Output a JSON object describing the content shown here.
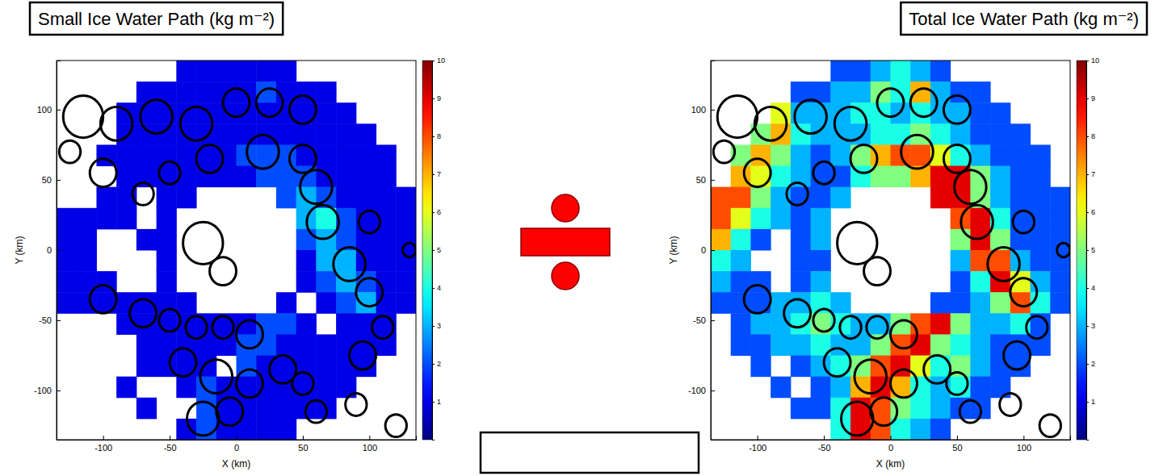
{
  "chart_data": [
    {
      "type": "heatmap",
      "title": "Small Ice Water Path (kg m⁻²)",
      "x_label": "X (km)",
      "y_label": "Y (km)",
      "xlim": [
        -135,
        135
      ],
      "ylim": [
        -135,
        135
      ],
      "xticks": [
        -100,
        -50,
        0,
        50,
        100
      ],
      "yticks": [
        -100,
        -50,
        0,
        50,
        100
      ],
      "x": [
        -127.5,
        -112.5,
        -97.5,
        -82.5,
        -67.5,
        -52.5,
        -37.5,
        -22.5,
        -7.5,
        7.5,
        22.5,
        37.5,
        52.5,
        67.5,
        82.5,
        97.5,
        112.5,
        127.5
      ],
      "y": [
        127.5,
        112.5,
        97.5,
        82.5,
        67.5,
        52.5,
        37.5,
        22.5,
        7.5,
        -7.5,
        -22.5,
        -37.5,
        -52.5,
        -67.5,
        -82.5,
        -97.5,
        -112.5,
        -127.5
      ],
      "values": [
        [
          null,
          null,
          null,
          null,
          null,
          null,
          1,
          1,
          1,
          1,
          1,
          1,
          null,
          null,
          null,
          null,
          null,
          null
        ],
        [
          null,
          null,
          null,
          null,
          1,
          1,
          1,
          1,
          1,
          1,
          2,
          1,
          1,
          1,
          null,
          null,
          null,
          null
        ],
        [
          null,
          null,
          null,
          1,
          1,
          1,
          1,
          1,
          1,
          1,
          1,
          1,
          1,
          1,
          1,
          null,
          null,
          null
        ],
        [
          null,
          null,
          null,
          1,
          1,
          1,
          1,
          1,
          1,
          1,
          1,
          1,
          1,
          1,
          1,
          1,
          null,
          null
        ],
        [
          null,
          null,
          1,
          1,
          1,
          1,
          1,
          1,
          1,
          2,
          2,
          2,
          1,
          1,
          1,
          1,
          1,
          null
        ],
        [
          null,
          null,
          null,
          1,
          1,
          1,
          1,
          1,
          1,
          1,
          2,
          2,
          2,
          1,
          1,
          1,
          1,
          null
        ],
        [
          null,
          null,
          1,
          1,
          null,
          1,
          1,
          null,
          null,
          null,
          null,
          2,
          3,
          2,
          1,
          1,
          1,
          1
        ],
        [
          1,
          1,
          1,
          1,
          null,
          1,
          null,
          null,
          null,
          null,
          null,
          null,
          3,
          4,
          2,
          1,
          1,
          1
        ],
        [
          1,
          1,
          null,
          null,
          1,
          1,
          null,
          null,
          null,
          null,
          null,
          null,
          2,
          3,
          2,
          1,
          1,
          1
        ],
        [
          1,
          1,
          null,
          null,
          null,
          1,
          null,
          null,
          null,
          null,
          null,
          null,
          1,
          3,
          3,
          1,
          1,
          1
        ],
        [
          1,
          1,
          1,
          null,
          null,
          1,
          null,
          null,
          null,
          null,
          null,
          null,
          1,
          2,
          3,
          2,
          1,
          1
        ],
        [
          1,
          1,
          1,
          1,
          1,
          1,
          1,
          null,
          null,
          null,
          null,
          1,
          null,
          1,
          2,
          3,
          1,
          1
        ],
        [
          null,
          null,
          null,
          1,
          1,
          1,
          1,
          1,
          1,
          1,
          2,
          2,
          1,
          null,
          1,
          1,
          1,
          null
        ],
        [
          null,
          null,
          null,
          null,
          1,
          1,
          1,
          1,
          1,
          2,
          2,
          1,
          1,
          1,
          1,
          1,
          1,
          null
        ],
        [
          null,
          null,
          null,
          null,
          1,
          1,
          1,
          1,
          null,
          2,
          1,
          1,
          1,
          1,
          1,
          1,
          null,
          null
        ],
        [
          null,
          null,
          null,
          1,
          null,
          null,
          1,
          2,
          1,
          1,
          1,
          1,
          1,
          1,
          1,
          null,
          null,
          null
        ],
        [
          null,
          null,
          null,
          null,
          1,
          null,
          null,
          2,
          1,
          1,
          1,
          1,
          1,
          1,
          null,
          null,
          null,
          null
        ],
        [
          null,
          null,
          null,
          null,
          null,
          null,
          1,
          2,
          1,
          1,
          1,
          1,
          null,
          null,
          null,
          null,
          null,
          null
        ]
      ],
      "color_range": [
        0,
        10
      ],
      "color_ticks": [
        1,
        2,
        3,
        4,
        5,
        6,
        7,
        8,
        9,
        10
      ],
      "contours": [
        [
          -115,
          95,
          15
        ],
        [
          -90,
          90,
          12
        ],
        [
          -60,
          95,
          12
        ],
        [
          -30,
          90,
          12
        ],
        [
          0,
          105,
          10
        ],
        [
          25,
          105,
          10
        ],
        [
          50,
          100,
          10
        ],
        [
          -125,
          70,
          8
        ],
        [
          -100,
          55,
          10
        ],
        [
          -70,
          40,
          8
        ],
        [
          -50,
          55,
          8
        ],
        [
          -20,
          65,
          10
        ],
        [
          20,
          70,
          12
        ],
        [
          50,
          65,
          10
        ],
        [
          60,
          45,
          12
        ],
        [
          65,
          20,
          12
        ],
        [
          85,
          -10,
          12
        ],
        [
          100,
          -30,
          10
        ],
        [
          100,
          20,
          8
        ],
        [
          130,
          0,
          5
        ],
        [
          -25,
          5,
          15
        ],
        [
          -10,
          -15,
          10
        ],
        [
          -100,
          -35,
          10
        ],
        [
          -70,
          -45,
          10
        ],
        [
          -50,
          -50,
          8
        ],
        [
          -30,
          -55,
          8
        ],
        [
          -10,
          -55,
          8
        ],
        [
          10,
          -60,
          10
        ],
        [
          -40,
          -80,
          10
        ],
        [
          -15,
          -90,
          12
        ],
        [
          10,
          -95,
          10
        ],
        [
          -25,
          -120,
          12
        ],
        [
          -5,
          -115,
          10
        ],
        [
          35,
          -85,
          10
        ],
        [
          50,
          -95,
          8
        ],
        [
          60,
          -115,
          8
        ],
        [
          95,
          -75,
          10
        ],
        [
          110,
          -55,
          8
        ],
        [
          90,
          -110,
          8
        ],
        [
          120,
          -125,
          8
        ]
      ]
    },
    {
      "type": "heatmap",
      "title": "Total Ice Water Path (kg m⁻²)",
      "x_label": "X (km)",
      "y_label": "Y (km)",
      "xlim": [
        -135,
        135
      ],
      "ylim": [
        -135,
        135
      ],
      "xticks": [
        -100,
        -50,
        0,
        50,
        100
      ],
      "yticks": [
        -100,
        -50,
        0,
        50,
        100
      ],
      "x": [
        -127.5,
        -112.5,
        -97.5,
        -82.5,
        -67.5,
        -52.5,
        -37.5,
        -22.5,
        -7.5,
        7.5,
        22.5,
        37.5,
        52.5,
        67.5,
        82.5,
        97.5,
        112.5,
        127.5
      ],
      "y": [
        127.5,
        112.5,
        97.5,
        82.5,
        67.5,
        52.5,
        37.5,
        22.5,
        7.5,
        -7.5,
        -22.5,
        -37.5,
        -52.5,
        -67.5,
        -82.5,
        -97.5,
        -112.5,
        -127.5
      ],
      "values": [
        [
          null,
          null,
          null,
          null,
          null,
          null,
          2,
          2,
          3,
          4,
          3,
          2,
          null,
          null,
          null,
          null,
          null,
          null
        ],
        [
          null,
          null,
          null,
          null,
          2,
          2,
          3,
          3,
          5,
          4,
          7,
          3,
          2,
          2,
          null,
          null,
          null,
          null
        ],
        [
          null,
          null,
          null,
          6,
          3,
          3,
          3,
          4,
          4,
          3,
          4,
          3,
          3,
          2,
          2,
          null,
          null,
          null
        ],
        [
          null,
          null,
          5,
          7,
          4,
          3,
          3,
          3,
          4,
          4,
          5,
          4,
          3,
          2,
          2,
          2,
          null,
          null
        ],
        [
          null,
          5,
          7,
          5,
          3,
          2,
          3,
          5,
          7,
          8,
          8,
          6,
          4,
          3,
          2,
          2,
          2,
          null
        ],
        [
          null,
          7,
          6,
          4,
          3,
          2,
          2,
          4,
          5,
          5,
          7,
          9,
          9,
          5,
          3,
          2,
          2,
          null
        ],
        [
          8,
          8,
          5,
          3,
          2,
          2,
          3,
          null,
          null,
          null,
          null,
          9,
          9,
          5,
          3,
          2,
          2,
          2
        ],
        [
          8,
          6,
          4,
          3,
          2,
          3,
          null,
          null,
          null,
          null,
          null,
          null,
          8,
          9,
          4,
          2,
          2,
          2
        ],
        [
          7,
          4,
          2,
          null,
          2,
          3,
          null,
          null,
          null,
          null,
          null,
          null,
          5,
          9,
          5,
          2,
          2,
          2
        ],
        [
          4,
          3,
          null,
          null,
          2,
          2,
          null,
          null,
          null,
          null,
          null,
          null,
          3,
          8,
          8,
          3,
          2,
          2
        ],
        [
          3,
          2,
          2,
          null,
          2,
          3,
          null,
          null,
          null,
          null,
          null,
          null,
          2,
          4,
          9,
          6,
          3,
          2
        ],
        [
          2,
          2,
          2,
          3,
          3,
          4,
          3,
          null,
          null,
          null,
          null,
          2,
          2,
          3,
          5,
          8,
          4,
          2
        ],
        [
          null,
          2,
          3,
          3,
          4,
          5,
          4,
          3,
          3,
          5,
          8,
          9,
          5,
          3,
          3,
          4,
          2,
          null
        ],
        [
          null,
          2,
          2,
          3,
          3,
          4,
          3,
          3,
          5,
          8,
          9,
          5,
          4,
          3,
          2,
          2,
          2,
          null
        ],
        [
          null,
          null,
          2,
          null,
          2,
          3,
          4,
          5,
          8,
          9,
          6,
          4,
          5,
          3,
          2,
          2,
          null,
          null
        ],
        [
          null,
          null,
          null,
          2,
          null,
          2,
          3,
          7,
          9,
          7,
          4,
          3,
          4,
          2,
          2,
          null,
          null,
          null
        ],
        [
          null,
          null,
          null,
          null,
          2,
          2,
          4,
          9,
          8,
          5,
          4,
          3,
          2,
          2,
          null,
          null,
          null,
          null
        ],
        [
          null,
          null,
          null,
          null,
          null,
          null,
          4,
          9,
          8,
          4,
          3,
          2,
          null,
          null,
          null,
          null,
          null,
          null
        ]
      ],
      "color_range": [
        0,
        10
      ],
      "color_ticks": [
        1,
        2,
        3,
        4,
        5,
        6,
        7,
        8,
        9,
        10
      ],
      "contours": [
        [
          -115,
          95,
          15
        ],
        [
          -90,
          90,
          12
        ],
        [
          -60,
          95,
          12
        ],
        [
          -30,
          90,
          12
        ],
        [
          0,
          105,
          10
        ],
        [
          25,
          105,
          10
        ],
        [
          50,
          100,
          10
        ],
        [
          -125,
          70,
          8
        ],
        [
          -100,
          55,
          10
        ],
        [
          -70,
          40,
          8
        ],
        [
          -50,
          55,
          8
        ],
        [
          -20,
          65,
          10
        ],
        [
          20,
          70,
          12
        ],
        [
          50,
          65,
          10
        ],
        [
          60,
          45,
          12
        ],
        [
          65,
          20,
          12
        ],
        [
          85,
          -10,
          12
        ],
        [
          100,
          -30,
          10
        ],
        [
          100,
          20,
          8
        ],
        [
          130,
          0,
          5
        ],
        [
          -25,
          5,
          15
        ],
        [
          -10,
          -15,
          10
        ],
        [
          -100,
          -35,
          10
        ],
        [
          -70,
          -45,
          10
        ],
        [
          -50,
          -50,
          8
        ],
        [
          -30,
          -55,
          8
        ],
        [
          -10,
          -55,
          8
        ],
        [
          10,
          -60,
          10
        ],
        [
          -40,
          -80,
          10
        ],
        [
          -15,
          -90,
          12
        ],
        [
          10,
          -95,
          10
        ],
        [
          -25,
          -120,
          12
        ],
        [
          -5,
          -115,
          10
        ],
        [
          35,
          -85,
          10
        ],
        [
          50,
          -95,
          8
        ],
        [
          60,
          -115,
          8
        ],
        [
          95,
          -75,
          10
        ],
        [
          110,
          -55,
          8
        ],
        [
          90,
          -110,
          8
        ],
        [
          120,
          -125,
          8
        ]
      ]
    }
  ]
}
